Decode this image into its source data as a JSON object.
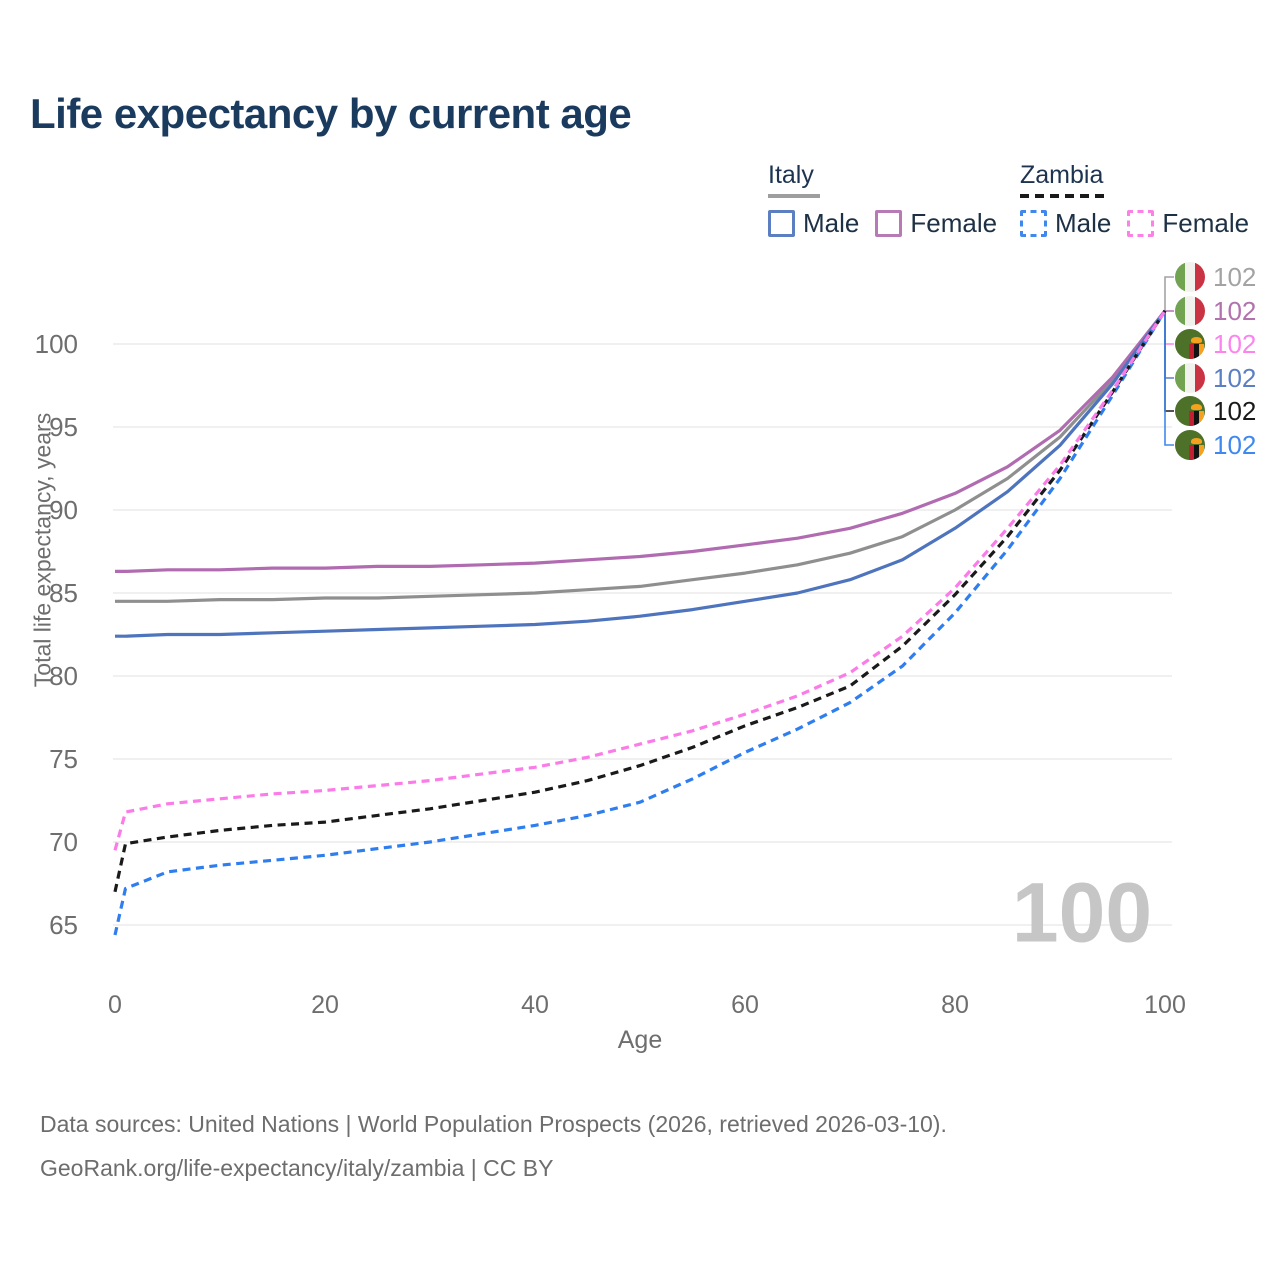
{
  "title": "Life expectancy by current age",
  "legend": {
    "position": "top-right",
    "groups": [
      {
        "label": "Italy",
        "line_style": "solid",
        "items": [
          {
            "label": "Male",
            "color": "#5b7fc0"
          },
          {
            "label": "Female",
            "color": "#b77ab4"
          }
        ]
      },
      {
        "label": "Zambia",
        "line_style": "dashed",
        "items": [
          {
            "label": "Male",
            "color": "#3f88f0"
          },
          {
            "label": "Female",
            "color": "#fb80e8"
          }
        ]
      }
    ]
  },
  "watermark": "100",
  "right_labels": [
    {
      "flag": "italy",
      "series": "Italy total",
      "value": "102",
      "color": "#a3a3a3"
    },
    {
      "flag": "italy",
      "series": "Italy female",
      "value": "102",
      "color": "#b172ae"
    },
    {
      "flag": "zambia",
      "series": "Zambia female",
      "value": "102",
      "color": "#fd84ee"
    },
    {
      "flag": "italy",
      "series": "Italy male",
      "value": "102",
      "color": "#5b7fc4"
    },
    {
      "flag": "zambia",
      "series": "Zambia total",
      "value": "102",
      "color": "#1a1a1a"
    },
    {
      "flag": "zambia",
      "series": "Zambia male",
      "value": "102",
      "color": "#3f88f0"
    }
  ],
  "footer": {
    "line1": "Data sources: United Nations | World Population Prospects (2026, retrieved 2026-03-10).",
    "line2": "GeoRank.org/life-expectancy/italy/zambia | CC BY"
  },
  "chart_data": {
    "type": "line",
    "title": "Life expectancy by current age",
    "xlabel": "Age",
    "ylabel": "Total life expectancy, years",
    "xlim": [
      0,
      100
    ],
    "ylim": [
      63,
      103
    ],
    "xticks": [
      0,
      20,
      40,
      60,
      80,
      100
    ],
    "yticks": [
      65,
      70,
      75,
      80,
      85,
      90,
      95,
      100
    ],
    "grid": true,
    "legend_position": "top-right",
    "x": [
      0,
      1,
      5,
      10,
      15,
      20,
      25,
      30,
      35,
      40,
      45,
      50,
      55,
      60,
      65,
      70,
      75,
      80,
      85,
      90,
      95,
      100
    ],
    "series": [
      {
        "id": "italy-total",
        "name": "Italy total (both sexes)",
        "color": "#8f8f8f",
        "dash": false,
        "values": [
          84.5,
          84.5,
          84.5,
          84.6,
          84.6,
          84.7,
          84.7,
          84.8,
          84.9,
          85.0,
          85.2,
          85.4,
          85.8,
          86.2,
          86.7,
          87.4,
          88.4,
          90.0,
          91.9,
          94.4,
          97.8,
          102
        ]
      },
      {
        "id": "italy-female",
        "name": "Italy female",
        "color": "#b16bb0",
        "dash": false,
        "values": [
          86.3,
          86.3,
          86.4,
          86.4,
          86.5,
          86.5,
          86.6,
          86.6,
          86.7,
          86.8,
          87.0,
          87.2,
          87.5,
          87.9,
          88.3,
          88.9,
          89.8,
          91.0,
          92.6,
          94.8,
          98.0,
          102
        ]
      },
      {
        "id": "italy-male",
        "name": "Italy male",
        "color": "#4e74bd",
        "dash": false,
        "values": [
          82.4,
          82.4,
          82.5,
          82.5,
          82.6,
          82.7,
          82.8,
          82.9,
          83.0,
          83.1,
          83.3,
          83.6,
          84.0,
          84.5,
          85.0,
          85.8,
          87.0,
          88.9,
          91.1,
          93.9,
          97.6,
          102
        ]
      },
      {
        "id": "zambia-male",
        "name": "Zambia male",
        "color": "#2f7ef0",
        "dash": true,
        "values": [
          64.4,
          67.2,
          68.2,
          68.6,
          68.9,
          69.2,
          69.6,
          70.0,
          70.5,
          71.0,
          71.6,
          72.4,
          73.8,
          75.4,
          76.8,
          78.4,
          80.6,
          83.8,
          87.6,
          91.9,
          96.9,
          102
        ]
      },
      {
        "id": "zambia-total",
        "name": "Zambia total (both sexes)",
        "color": "#1a1a1a",
        "dash": true,
        "values": [
          67.0,
          69.9,
          70.3,
          70.7,
          71.0,
          71.2,
          71.6,
          72.0,
          72.5,
          73.0,
          73.7,
          74.6,
          75.7,
          77.0,
          78.1,
          79.4,
          81.8,
          84.9,
          88.4,
          92.4,
          97.1,
          102
        ]
      },
      {
        "id": "zambia-female",
        "name": "Zambia female",
        "color": "#fb7ce8",
        "dash": true,
        "values": [
          69.5,
          71.8,
          72.3,
          72.6,
          72.9,
          73.1,
          73.4,
          73.7,
          74.1,
          74.5,
          75.1,
          75.9,
          76.7,
          77.7,
          78.8,
          80.2,
          82.4,
          85.3,
          88.9,
          92.7,
          97.2,
          102
        ]
      }
    ]
  }
}
